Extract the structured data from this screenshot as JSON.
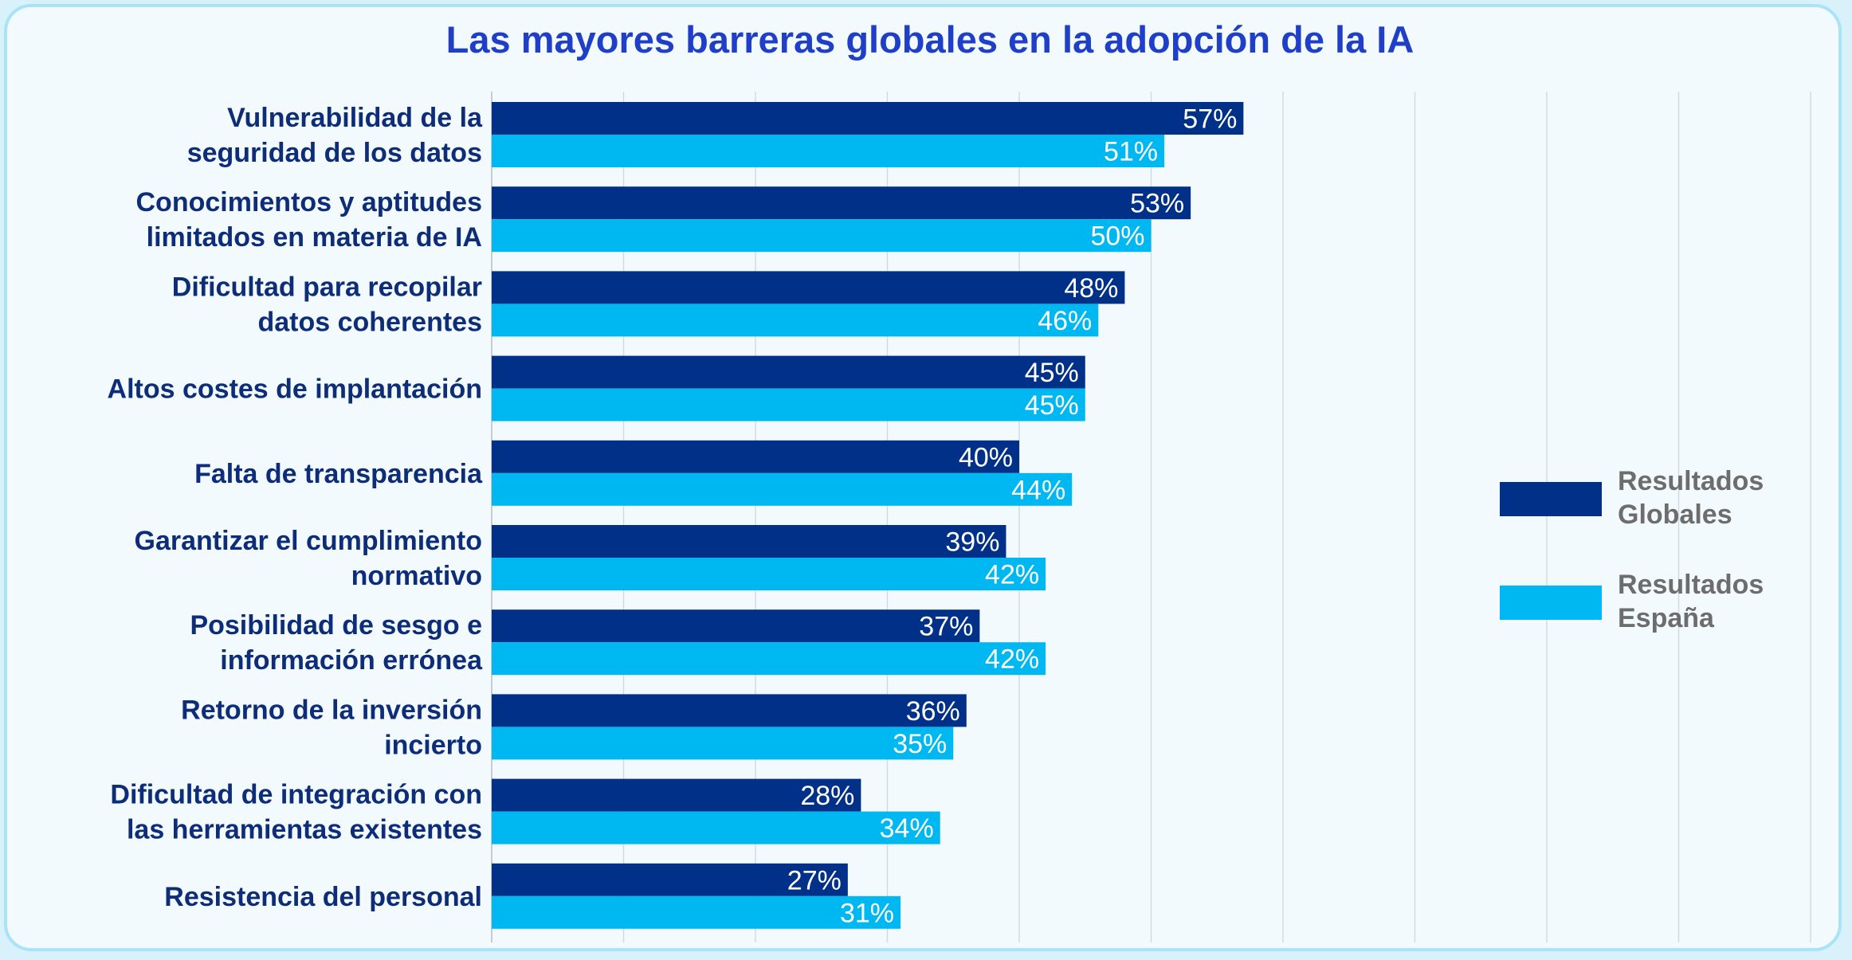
{
  "chart_data": {
    "type": "bar",
    "orientation": "horizontal",
    "title": "Las mayores barreras globales en la adopción de la IA",
    "categories": [
      [
        "Vulnerabilidad de la",
        "seguridad de los datos"
      ],
      [
        "Conocimientos y aptitudes",
        "limitados en materia de IA"
      ],
      [
        "Dificultad para recopilar",
        "datos coherentes"
      ],
      [
        "Altos costes de implantación"
      ],
      [
        "Falta de transparencia"
      ],
      [
        "Garantizar el cumplimiento",
        "normativo"
      ],
      [
        "Posibilidad de sesgo e",
        "información errónea"
      ],
      [
        "Retorno de la inversión",
        "incierto"
      ],
      [
        "Dificultad de integración con",
        "las herramientas existentes"
      ],
      [
        "Resistencia del personal"
      ]
    ],
    "series": [
      {
        "name": "Resultados Globales",
        "legend_lines": [
          "Resultados",
          "Globales"
        ],
        "color": "#003087",
        "values": [
          57,
          53,
          48,
          45,
          40,
          39,
          37,
          36,
          28,
          27
        ]
      },
      {
        "name": "Resultados España",
        "legend_lines": [
          "Resultados",
          "España"
        ],
        "color": "#00b8f1",
        "values": [
          51,
          50,
          46,
          45,
          44,
          42,
          42,
          35,
          34,
          31
        ]
      }
    ],
    "xlim": [
      0,
      100
    ],
    "value_suffix": "%",
    "grid": true,
    "legend_position": "right"
  },
  "colors": {
    "title": "#1f3fc9",
    "category_label": "#0d2d79",
    "legend_text": "#6d6d6d",
    "gridline": "#d5d9dd",
    "card_background": "#f3fafd",
    "card_border": "#a9e3f8"
  }
}
